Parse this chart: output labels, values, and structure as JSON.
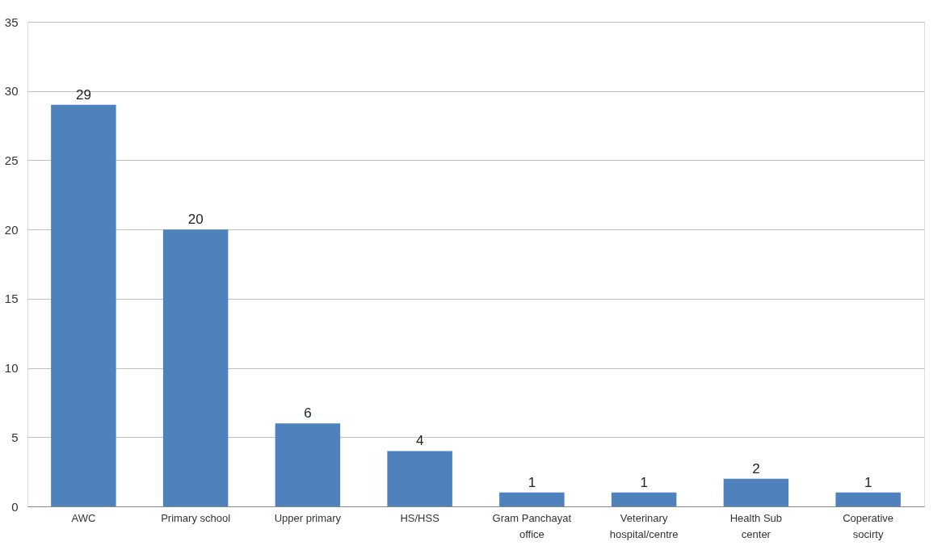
{
  "chart_data": {
    "type": "bar",
    "categories": [
      "AWC",
      "Primary school",
      "Upper primary",
      "HS/HSS",
      "Gram Panchayat office",
      "Veterinary hospital/centre",
      "Health Sub center",
      "Coperative socirty"
    ],
    "values": [
      29,
      20,
      6,
      4,
      1,
      1,
      2,
      1
    ],
    "color": "#4f81bd",
    "ylim": [
      0,
      35
    ],
    "yticks": [
      0,
      5,
      10,
      15,
      20,
      25,
      30,
      35
    ],
    "grid": "y",
    "data_labels": true
  }
}
